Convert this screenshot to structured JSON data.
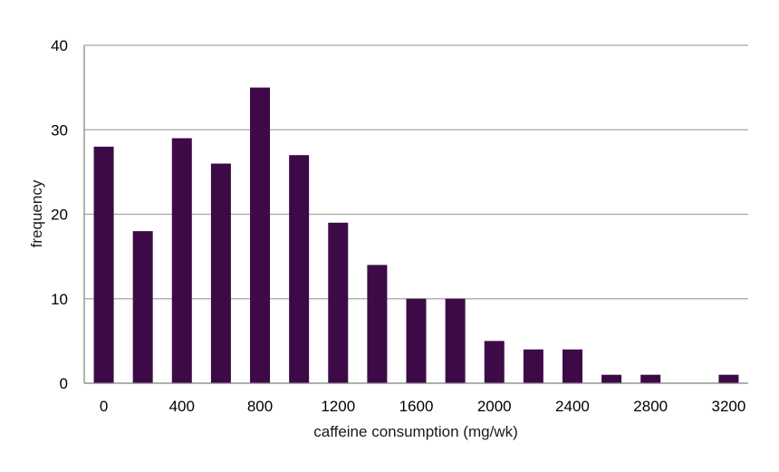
{
  "chart_data": {
    "type": "bar",
    "title": "",
    "xlabel": "caffeine consumption (mg/wk)",
    "ylabel": "frequency",
    "categories": [
      "0",
      "200",
      "400",
      "600",
      "800",
      "1000",
      "1200",
      "1400",
      "1600",
      "1800",
      "2000",
      "2200",
      "2400",
      "2600",
      "2800",
      "3000",
      "3200"
    ],
    "values": [
      28,
      18,
      29,
      26,
      35,
      27,
      19,
      14,
      10,
      10,
      5,
      4,
      4,
      1,
      1,
      0,
      1
    ],
    "x_tick_labels": [
      "0",
      "400",
      "800",
      "1200",
      "1600",
      "2000",
      "2400",
      "2800",
      "3200"
    ],
    "y_ticks": [
      0,
      10,
      20,
      30,
      40
    ],
    "ylim": [
      0,
      40
    ],
    "grid": true,
    "legend": "none",
    "colors": {
      "bar": "#3d0a47",
      "grid": "#a6a6a6",
      "axis": "#7f7f7f"
    }
  }
}
